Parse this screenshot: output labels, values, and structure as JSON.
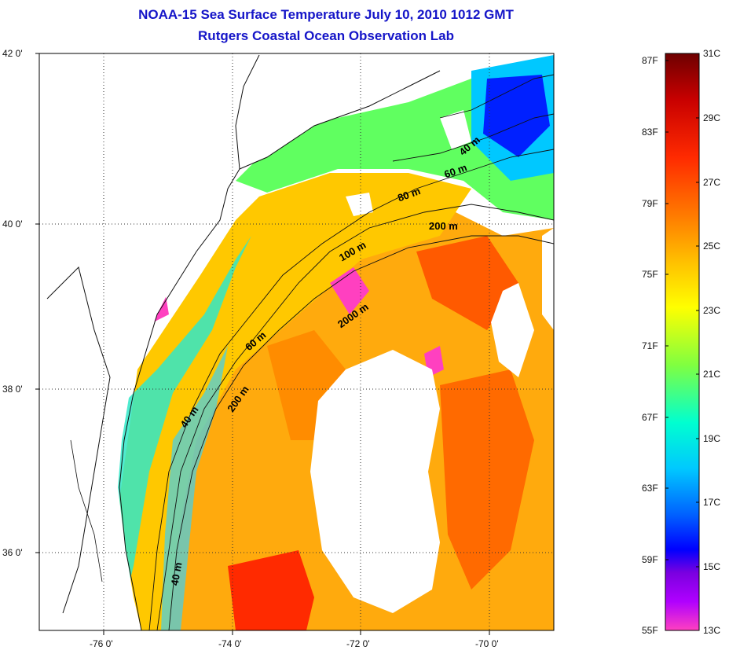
{
  "title_line1": "NOAA-15 Sea Surface Temperature July 10, 2010 1012 GMT",
  "title_line2": "Rutgers Coastal Ocean Observation Lab",
  "lat_labels": [
    "42 0'",
    "40 0'",
    "38 0'",
    "36 0'"
  ],
  "lon_labels": [
    "-76 0'",
    "-74 0'",
    "-72 0'",
    "-70 0'"
  ],
  "contour_labels": [
    "40 m",
    "60 m",
    "80 m",
    "200 m",
    "100 m",
    "2000 m",
    "60 m",
    "200 m",
    "40 m",
    "40 m"
  ],
  "colorbar": {
    "fahrenheit": [
      "87F",
      "83F",
      "79F",
      "75F",
      "71F",
      "67F",
      "63F",
      "59F",
      "55F"
    ],
    "celsius": [
      "31C",
      "29C",
      "27C",
      "25C",
      "23C",
      "21C",
      "19C",
      "17C",
      "15C",
      "13C"
    ],
    "colors": [
      "#6e0000",
      "#c80000",
      "#ff2a00",
      "#ff7a00",
      "#ffbf00",
      "#ffff00",
      "#80ff40",
      "#00ffd0",
      "#00c8ff",
      "#0060ff",
      "#0000ff",
      "#7a00e0",
      "#b000ff",
      "#ff40c0"
    ]
  }
}
